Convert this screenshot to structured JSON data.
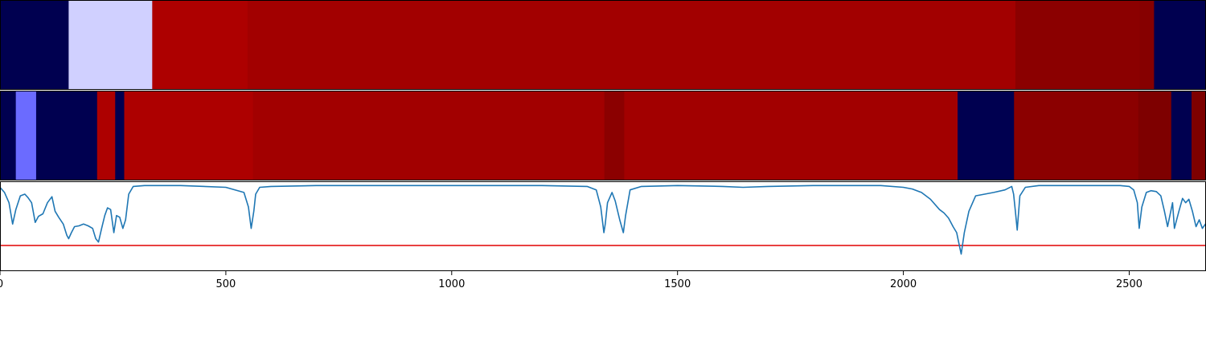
{
  "chart_data": [
    {
      "type": "heatmap",
      "xlim": [
        0,
        2670
      ],
      "segments": [
        {
          "start": 0,
          "end": 152,
          "color": "#000050"
        },
        {
          "start": 152,
          "end": 337,
          "color": "#d0d0ff"
        },
        {
          "start": 337,
          "end": 548,
          "color": "#ad0000"
        },
        {
          "start": 548,
          "end": 2248,
          "color": "#a20000"
        },
        {
          "start": 2248,
          "end": 2523,
          "color": "#8b0000"
        },
        {
          "start": 2523,
          "end": 2555,
          "color": "#860000"
        },
        {
          "start": 2555,
          "end": 2670,
          "color": "#000050"
        }
      ]
    },
    {
      "type": "heatmap",
      "xlim": [
        0,
        2670
      ],
      "segments": [
        {
          "start": 0,
          "end": 35,
          "color": "#000050"
        },
        {
          "start": 35,
          "end": 80,
          "color": "#6b6bff"
        },
        {
          "start": 80,
          "end": 215,
          "color": "#000050"
        },
        {
          "start": 215,
          "end": 255,
          "color": "#ad0000"
        },
        {
          "start": 255,
          "end": 275,
          "color": "#000050"
        },
        {
          "start": 275,
          "end": 560,
          "color": "#ad0000"
        },
        {
          "start": 560,
          "end": 1338,
          "color": "#a20000"
        },
        {
          "start": 1338,
          "end": 1382,
          "color": "#8b0000"
        },
        {
          "start": 1382,
          "end": 2120,
          "color": "#a20000"
        },
        {
          "start": 2120,
          "end": 2245,
          "color": "#000050"
        },
        {
          "start": 2245,
          "end": 2520,
          "color": "#8b0000"
        },
        {
          "start": 2520,
          "end": 2593,
          "color": "#7e0000"
        },
        {
          "start": 2593,
          "end": 2638,
          "color": "#000050"
        },
        {
          "start": 2638,
          "end": 2670,
          "color": "#7e0000"
        }
      ]
    },
    {
      "type": "line",
      "xlim": [
        0,
        2670
      ],
      "ylim": [
        -1.0,
        0.05
      ],
      "threshold": {
        "y": -0.7,
        "color": "#e00000"
      },
      "series": [
        {
          "color": "#1f77b4",
          "x": [
            0,
            10,
            20,
            28,
            35,
            45,
            55,
            62,
            70,
            78,
            85,
            95,
            105,
            115,
            122,
            130,
            140,
            148,
            152,
            158,
            165,
            175,
            185,
            195,
            205,
            212,
            218,
            225,
            232,
            238,
            245,
            252,
            258,
            265,
            272,
            278,
            285,
            295,
            320,
            400,
            500,
            540,
            550,
            556,
            562,
            566,
            575,
            600,
            700,
            1000,
            1200,
            1300,
            1320,
            1330,
            1337,
            1340,
            1345,
            1355,
            1362,
            1372,
            1380,
            1385,
            1395,
            1420,
            1500,
            1600,
            1645,
            1700,
            1800,
            1950,
            2000,
            2020,
            2040,
            2060,
            2080,
            2090,
            2100,
            2110,
            2118,
            2122,
            2128,
            2135,
            2145,
            2160,
            2200,
            2225,
            2240,
            2244,
            2248,
            2252,
            2258,
            2270,
            2300,
            2400,
            2480,
            2500,
            2510,
            2518,
            2522,
            2528,
            2538,
            2548,
            2560,
            2570,
            2578,
            2585,
            2592,
            2596,
            2600,
            2610,
            2618,
            2625,
            2632,
            2640,
            2648,
            2655,
            2662,
            2670
          ],
          "y": [
            -0.02,
            -0.08,
            -0.2,
            -0.45,
            -0.28,
            -0.12,
            -0.1,
            -0.14,
            -0.2,
            -0.43,
            -0.36,
            -0.33,
            -0.2,
            -0.13,
            -0.3,
            -0.37,
            -0.45,
            -0.58,
            -0.62,
            -0.55,
            -0.48,
            -0.47,
            -0.45,
            -0.47,
            -0.5,
            -0.62,
            -0.66,
            -0.5,
            -0.35,
            -0.26,
            -0.28,
            -0.55,
            -0.35,
            -0.37,
            -0.5,
            -0.4,
            -0.1,
            -0.01,
            0.0,
            0.0,
            -0.02,
            -0.08,
            -0.25,
            -0.5,
            -0.3,
            -0.1,
            -0.02,
            -0.01,
            0.0,
            0.0,
            0.0,
            -0.01,
            -0.05,
            -0.25,
            -0.55,
            -0.45,
            -0.2,
            -0.08,
            -0.18,
            -0.4,
            -0.55,
            -0.35,
            -0.05,
            -0.01,
            0.0,
            -0.01,
            -0.02,
            -0.01,
            0.0,
            0.0,
            -0.02,
            -0.04,
            -0.08,
            -0.16,
            -0.28,
            -0.32,
            -0.38,
            -0.48,
            -0.55,
            -0.65,
            -0.8,
            -0.55,
            -0.3,
            -0.12,
            -0.08,
            -0.05,
            -0.01,
            -0.1,
            -0.3,
            -0.52,
            -0.12,
            -0.02,
            0.0,
            0.0,
            0.0,
            -0.01,
            -0.05,
            -0.2,
            -0.5,
            -0.25,
            -0.08,
            -0.06,
            -0.07,
            -0.12,
            -0.3,
            -0.48,
            -0.3,
            -0.2,
            -0.5,
            -0.3,
            -0.15,
            -0.2,
            -0.16,
            -0.3,
            -0.48,
            -0.4,
            -0.5,
            -0.44
          ]
        }
      ]
    },
    {
      "type": "axis",
      "xticks": [
        0,
        500,
        1000,
        1500,
        2000,
        2500
      ],
      "xtick_labels": [
        "0",
        "500",
        "1000",
        "1500",
        "2000",
        "2500"
      ]
    }
  ]
}
